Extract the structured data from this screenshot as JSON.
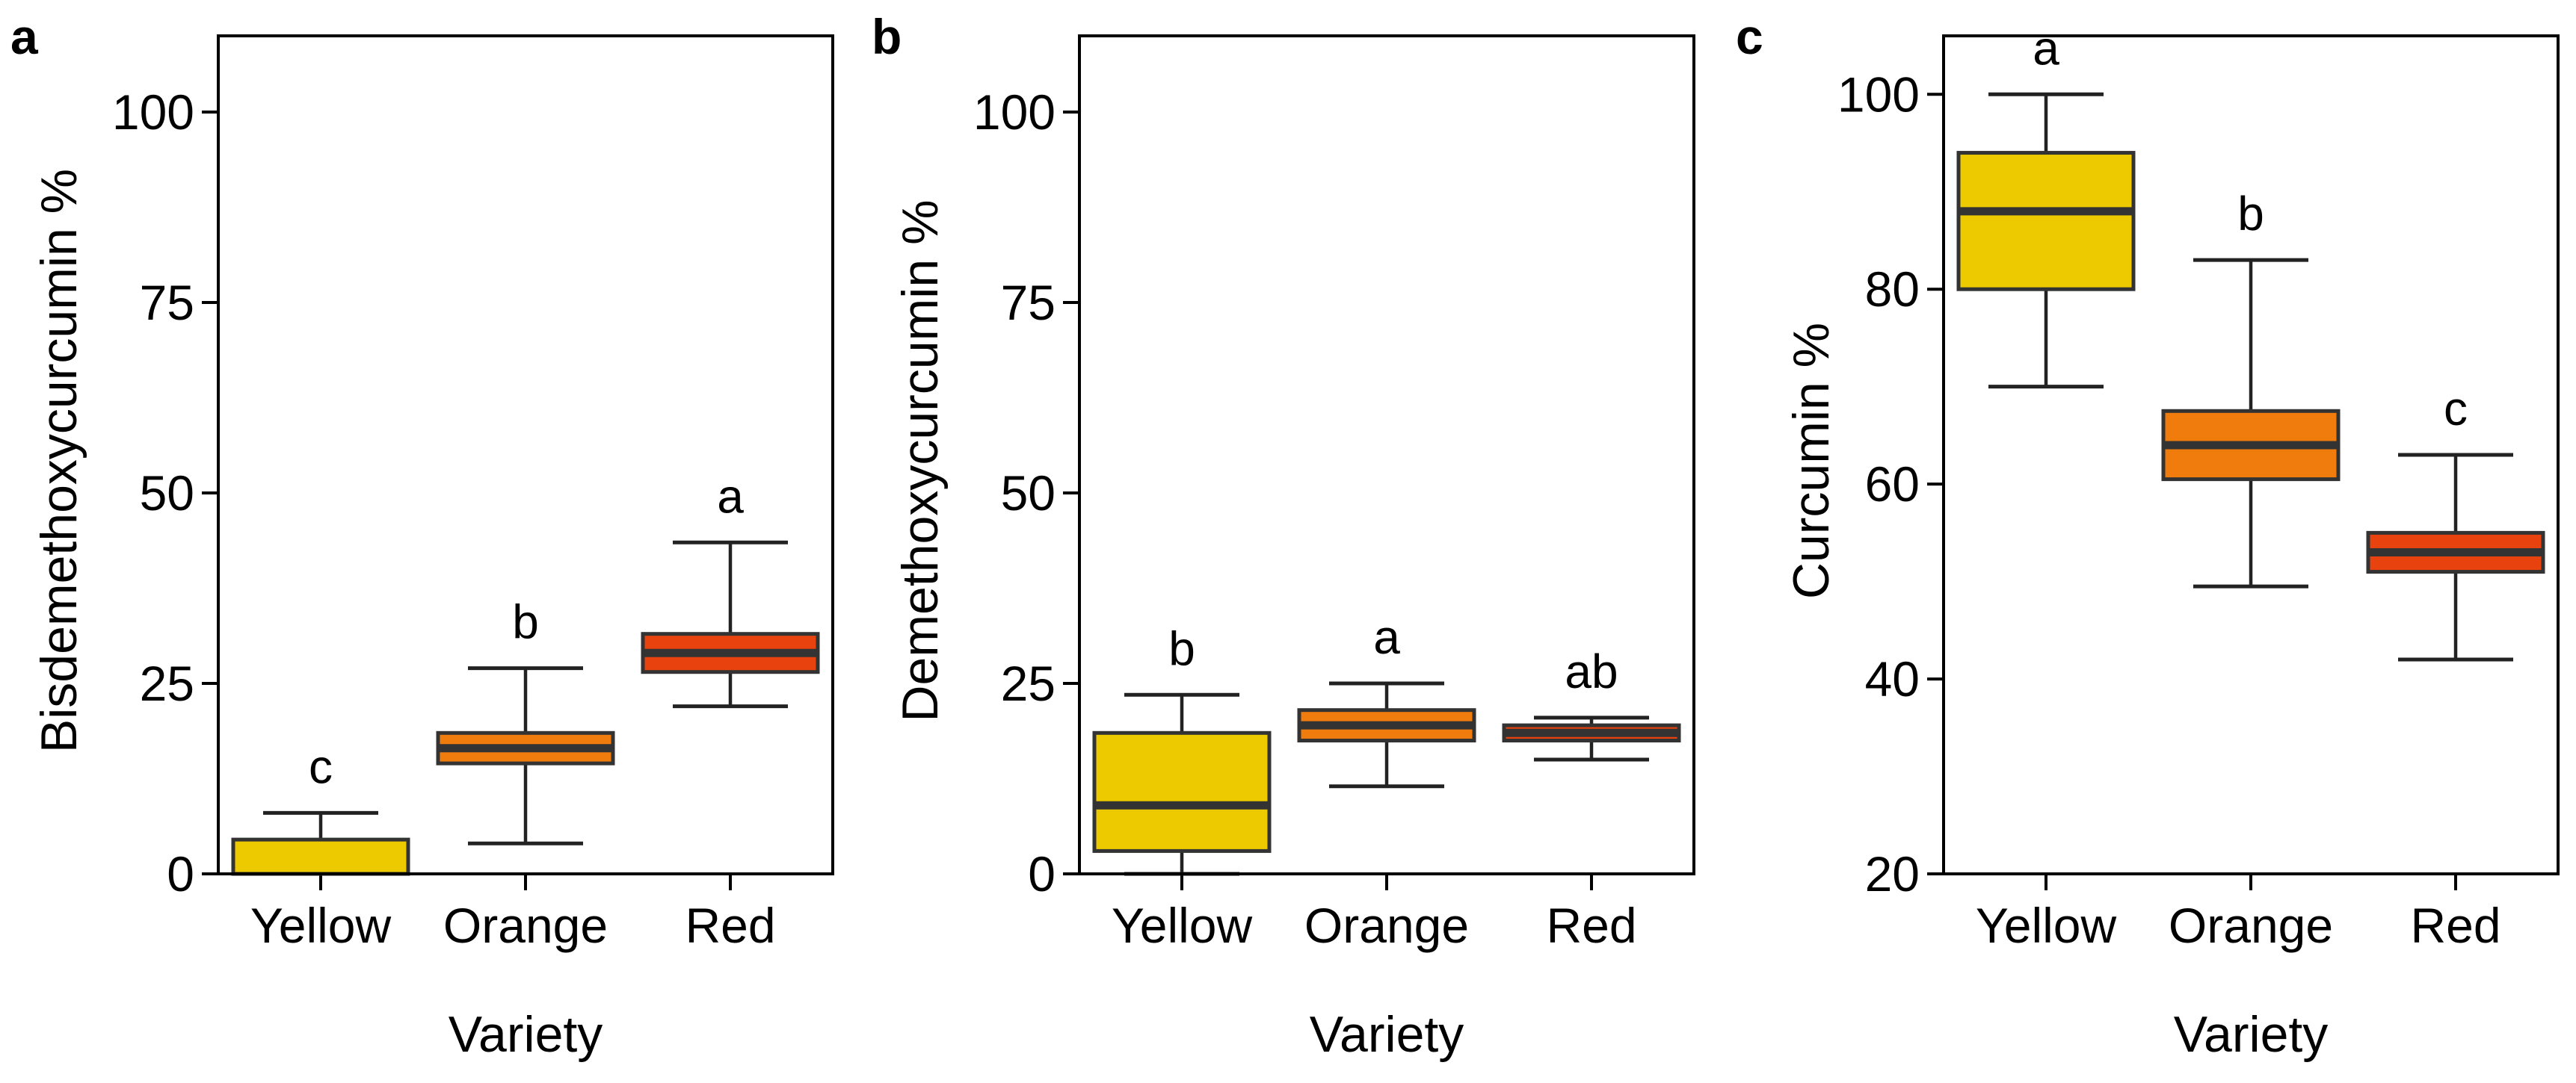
{
  "colors": {
    "Yellow": "#EDC900",
    "Orange": "#F07C0E",
    "Red": "#E8430F",
    "box_edge": "#333333",
    "whisker": "#222222"
  },
  "chart_data": [
    {
      "type": "boxplot",
      "panel": "a",
      "xlabel": "Variety",
      "ylabel": "Bisdemethoxycurcumin %",
      "ylim": [
        0,
        110
      ],
      "yticks": [
        0,
        25,
        50,
        75,
        100
      ],
      "categories": [
        "Yellow",
        "Orange",
        "Red"
      ],
      "boxes": [
        {
          "category": "Yellow",
          "min": 0,
          "q1": 0,
          "median": 0,
          "q3": 4.5,
          "max": 8,
          "label": "c"
        },
        {
          "category": "Orange",
          "min": 4,
          "q1": 14.5,
          "median": 16.5,
          "q3": 18.5,
          "max": 27,
          "label": "b"
        },
        {
          "category": "Red",
          "min": 22,
          "q1": 26.5,
          "median": 29,
          "q3": 31.5,
          "max": 43.5,
          "label": "a"
        }
      ]
    },
    {
      "type": "boxplot",
      "panel": "b",
      "xlabel": "Variety",
      "ylabel": "Demethoxycurcumin %",
      "ylim": [
        0,
        110
      ],
      "yticks": [
        0,
        25,
        50,
        75,
        100
      ],
      "categories": [
        "Yellow",
        "Orange",
        "Red"
      ],
      "boxes": [
        {
          "category": "Yellow",
          "min": 0,
          "q1": 3,
          "median": 9,
          "q3": 18.5,
          "max": 23.5,
          "label": "b"
        },
        {
          "category": "Orange",
          "min": 11.5,
          "q1": 17.5,
          "median": 19.5,
          "q3": 21.5,
          "max": 25,
          "label": "a"
        },
        {
          "category": "Red",
          "min": 15,
          "q1": 17.5,
          "median": 18.5,
          "q3": 19.5,
          "max": 20.5,
          "label": "ab"
        }
      ]
    },
    {
      "type": "boxplot",
      "panel": "c",
      "xlabel": "Variety",
      "ylabel": "Curcumin %",
      "ylim": [
        20,
        106
      ],
      "yticks": [
        20,
        40,
        60,
        80,
        100
      ],
      "categories": [
        "Yellow",
        "Orange",
        "Red"
      ],
      "boxes": [
        {
          "category": "Yellow",
          "min": 70,
          "q1": 80,
          "median": 88,
          "q3": 94,
          "max": 100,
          "label": "a"
        },
        {
          "category": "Orange",
          "min": 49.5,
          "q1": 60.5,
          "median": 64,
          "q3": 67.5,
          "max": 83,
          "label": "b"
        },
        {
          "category": "Red",
          "min": 42,
          "q1": 51,
          "median": 53,
          "q3": 55,
          "max": 63,
          "label": "c"
        }
      ]
    }
  ]
}
